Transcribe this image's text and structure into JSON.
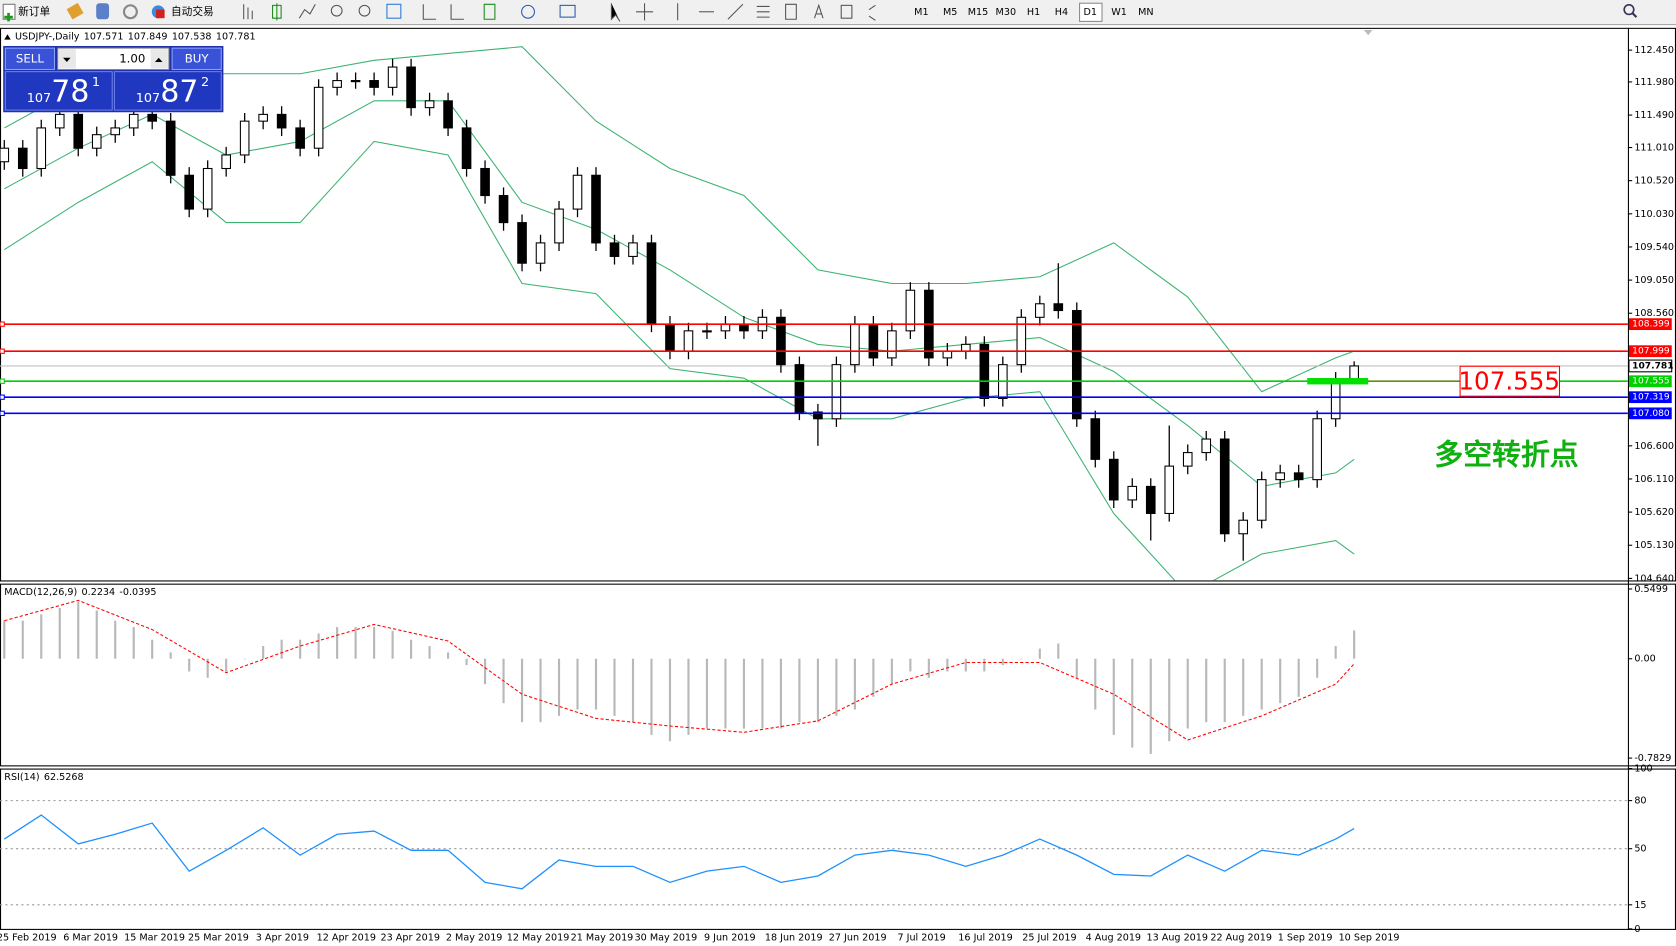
{
  "toolbar": {
    "new_order": "新订单",
    "auto_trading": "自动交易",
    "timeframes": [
      "M1",
      "M5",
      "M15",
      "M30",
      "H1",
      "H4",
      "D1",
      "W1",
      "MN"
    ],
    "active": "D1"
  },
  "trade_panel": {
    "sell": "SELL",
    "buy": "BUY",
    "lot": "1.00",
    "bid": {
      "big": "107",
      "main": "78",
      "small": "1"
    },
    "ask": {
      "big": "107",
      "main": "87",
      "small": "2"
    }
  },
  "chart_data": [
    {
      "type": "candlestick",
      "symbol": "USDJPY-,Daily",
      "ohlc": [
        [
          110.8,
          111.12,
          110.68,
          111.0
        ],
        [
          111.0,
          111.12,
          110.58,
          110.7
        ],
        [
          110.7,
          111.42,
          110.58,
          111.3
        ],
        [
          111.3,
          111.62,
          111.18,
          111.5
        ],
        [
          111.5,
          111.62,
          110.88,
          111.0
        ],
        [
          111.0,
          111.32,
          110.88,
          111.2
        ],
        [
          111.2,
          111.42,
          111.08,
          111.3
        ],
        [
          111.3,
          111.62,
          111.18,
          111.5
        ],
        [
          111.5,
          111.62,
          111.28,
          111.4
        ],
        [
          111.4,
          111.52,
          110.48,
          110.6
        ],
        [
          110.6,
          110.72,
          109.98,
          110.1
        ],
        [
          110.1,
          110.82,
          109.98,
          110.7
        ],
        [
          110.7,
          111.02,
          110.58,
          110.9
        ],
        [
          110.9,
          111.52,
          110.78,
          111.4
        ],
        [
          111.4,
          111.62,
          111.28,
          111.5
        ],
        [
          111.5,
          111.62,
          111.18,
          111.3
        ],
        [
          111.3,
          111.42,
          110.88,
          111.0
        ],
        [
          111.0,
          112.02,
          110.88,
          111.9
        ],
        [
          111.9,
          112.12,
          111.78,
          112.0
        ],
        [
          112.0,
          112.12,
          111.88,
          112.0
        ],
        [
          112.0,
          112.12,
          111.78,
          111.9
        ],
        [
          111.9,
          112.32,
          111.78,
          112.2
        ],
        [
          112.2,
          112.32,
          111.48,
          111.6
        ],
        [
          111.6,
          111.82,
          111.48,
          111.7
        ],
        [
          111.7,
          111.82,
          111.18,
          111.3
        ],
        [
          111.3,
          111.42,
          110.58,
          110.7
        ],
        [
          110.7,
          110.82,
          110.18,
          110.3
        ],
        [
          110.3,
          110.42,
          109.78,
          109.9
        ],
        [
          109.9,
          110.02,
          109.18,
          109.3
        ],
        [
          109.3,
          109.72,
          109.18,
          109.6
        ],
        [
          109.6,
          110.22,
          109.48,
          110.1
        ],
        [
          110.1,
          110.72,
          109.98,
          110.6
        ],
        [
          110.6,
          110.72,
          109.48,
          109.6
        ],
        [
          109.6,
          109.72,
          109.28,
          109.4
        ],
        [
          109.4,
          109.72,
          109.28,
          109.6
        ],
        [
          109.6,
          109.72,
          108.28,
          108.4
        ],
        [
          108.4,
          108.52,
          107.88,
          108.0
        ],
        [
          108.0,
          108.42,
          107.88,
          108.3
        ],
        [
          108.3,
          108.42,
          108.18,
          108.3
        ],
        [
          108.3,
          108.52,
          108.18,
          108.4
        ],
        [
          108.4,
          108.52,
          108.18,
          108.3
        ],
        [
          108.3,
          108.62,
          108.18,
          108.5
        ],
        [
          108.5,
          108.62,
          107.68,
          107.8
        ],
        [
          107.8,
          107.92,
          106.98,
          107.1
        ],
        [
          107.1,
          107.22,
          106.6,
          107.0
        ],
        [
          107.0,
          107.92,
          106.88,
          107.8
        ],
        [
          107.8,
          108.52,
          107.68,
          108.4
        ],
        [
          108.4,
          108.52,
          107.78,
          107.9
        ],
        [
          107.9,
          108.42,
          107.78,
          108.3
        ],
        [
          108.3,
          109.02,
          108.18,
          108.9
        ],
        [
          108.9,
          109.02,
          107.78,
          107.9
        ],
        [
          107.9,
          108.12,
          107.78,
          108.0
        ],
        [
          108.0,
          108.22,
          107.88,
          108.1
        ],
        [
          108.1,
          108.22,
          107.18,
          107.3
        ],
        [
          107.3,
          107.92,
          107.18,
          107.8
        ],
        [
          107.8,
          108.62,
          107.68,
          108.5
        ],
        [
          108.5,
          108.82,
          108.38,
          108.7
        ],
        [
          108.7,
          109.3,
          108.48,
          108.6
        ],
        [
          108.6,
          108.72,
          106.88,
          107.0
        ],
        [
          107.0,
          107.12,
          106.28,
          106.4
        ],
        [
          106.4,
          106.52,
          105.68,
          105.8
        ],
        [
          105.8,
          106.12,
          105.68,
          106.0
        ],
        [
          106.0,
          106.12,
          105.2,
          105.6
        ],
        [
          105.6,
          106.9,
          105.48,
          106.3
        ],
        [
          106.3,
          106.62,
          106.18,
          106.5
        ],
        [
          106.5,
          106.82,
          106.38,
          106.7
        ],
        [
          106.7,
          106.82,
          105.18,
          105.3
        ],
        [
          105.3,
          105.62,
          104.9,
          105.5
        ],
        [
          105.5,
          106.22,
          105.38,
          106.1
        ],
        [
          106.1,
          106.32,
          105.98,
          106.2
        ],
        [
          106.2,
          106.32,
          105.98,
          106.1
        ],
        [
          106.1,
          107.12,
          105.98,
          107.0
        ],
        [
          107.0,
          107.69,
          106.88,
          107.57
        ],
        [
          107.571,
          107.849,
          107.538,
          107.781
        ]
      ],
      "bands": {
        "color": "#3cb371",
        "x": [
          0,
          4,
          8,
          12,
          16,
          20,
          24,
          28,
          32,
          36,
          40,
          44,
          48,
          52,
          56,
          60,
          64,
          68,
          72,
          73
        ],
        "upper": [
          111.3,
          111.9,
          112.1,
          112.1,
          112.1,
          112.3,
          112.4,
          112.5,
          111.4,
          110.7,
          110.3,
          109.2,
          109.0,
          109.0,
          109.1,
          109.6,
          108.8,
          107.4,
          107.9,
          108.0
        ],
        "middle": [
          110.4,
          111.0,
          111.5,
          110.9,
          111.1,
          111.7,
          111.7,
          110.2,
          109.8,
          109.2,
          108.5,
          108.1,
          108.0,
          108.1,
          108.2,
          107.7,
          106.9,
          106.0,
          106.2,
          106.4
        ],
        "lower": [
          109.5,
          110.2,
          110.8,
          109.9,
          109.9,
          111.1,
          110.9,
          109.0,
          108.85,
          107.74,
          107.6,
          107.0,
          107.0,
          107.3,
          107.4,
          105.6,
          104.4,
          105.0,
          105.2,
          105.0
        ]
      },
      "ylim": [
        104.61,
        112.78
      ],
      "yticks": [
        {
          "value": 112.45,
          "label": "112.450"
        },
        {
          "value": 111.98,
          "label": "111.980"
        },
        {
          "value": 111.49,
          "label": "111.490"
        },
        {
          "value": 111.01,
          "label": "111.010"
        },
        {
          "value": 110.52,
          "label": "110.520"
        },
        {
          "value": 110.03,
          "label": "110.030"
        },
        {
          "value": 109.54,
          "label": "109.540"
        },
        {
          "value": 109.05,
          "label": "109.050"
        },
        {
          "value": 108.56,
          "label": "108.560"
        },
        {
          "value": 106.6,
          "label": "106.600"
        },
        {
          "value": 106.11,
          "label": "106.110"
        },
        {
          "value": 105.62,
          "label": "105.620"
        },
        {
          "value": 105.13,
          "label": "105.130"
        },
        {
          "value": 104.64,
          "label": "104.640"
        }
      ],
      "hlines": [
        {
          "value": 108.399,
          "color": "#ff0000"
        },
        {
          "value": 107.999,
          "color": "#ff0000"
        },
        {
          "value": 107.555,
          "color": "#00d000"
        },
        {
          "value": 107.319,
          "color": "#0000ff"
        },
        {
          "value": 107.08,
          "label": "107.080",
          "color": "#0000ff"
        }
      ],
      "x_labels": [
        "25 Feb 2019",
        "6 Mar 2019",
        "15 Mar 2019",
        "25 Mar 2019",
        "3 Apr 2019",
        "12 Apr 2019",
        "23 Apr 2019",
        "2 May 2019",
        "12 May 2019",
        "21 May 2019",
        "30 May 2019",
        "9 Jun 2019",
        "18 Jun 2019",
        "27 Jun 2019",
        "7 Jul 2019",
        "16 Jul 2019",
        "25 Jul 2019",
        "4 Aug 2019",
        "13 Aug 2019",
        "22 Aug 2019",
        "1 Sep 2019",
        "10 Sep 2019"
      ],
      "annotation": "多空转折点"
    },
    {
      "type": "macd",
      "title": "MACD(12,26,9)",
      "histogram": [
        0.3,
        0.3,
        0.35,
        0.4,
        0.45,
        0.38,
        0.3,
        0.25,
        0.15,
        0.05,
        -0.1,
        -0.15,
        -0.1,
        0.0,
        0.1,
        0.15,
        0.15,
        0.2,
        0.25,
        0.25,
        0.25,
        0.22,
        0.15,
        0.1,
        0.05,
        -0.05,
        -0.2,
        -0.35,
        -0.5,
        -0.5,
        -0.45,
        -0.4,
        -0.4,
        -0.45,
        -0.5,
        -0.6,
        -0.65,
        -0.6,
        -0.55,
        -0.55,
        -0.55,
        -0.55,
        -0.55,
        -0.5,
        -0.5,
        -0.45,
        -0.4,
        -0.3,
        -0.2,
        -0.1,
        -0.15,
        -0.1,
        -0.1,
        -0.1,
        -0.05,
        0.0,
        0.08,
        0.12,
        -0.15,
        -0.4,
        -0.6,
        -0.7,
        -0.75,
        -0.65,
        -0.55,
        -0.5,
        -0.5,
        -0.45,
        -0.4,
        -0.35,
        -0.3,
        -0.15,
        0.1,
        0.2234
      ],
      "signal": {
        "x": [
          0,
          4,
          8,
          12,
          16,
          20,
          24,
          28,
          32,
          36,
          40,
          44,
          48,
          52,
          56,
          60,
          64,
          68,
          72,
          73
        ],
        "values": [
          0.3,
          0.46,
          0.23,
          -0.11,
          0.1,
          0.27,
          0.14,
          -0.28,
          -0.47,
          -0.53,
          -0.58,
          -0.49,
          -0.2,
          -0.03,
          -0.03,
          -0.28,
          -0.64,
          -0.45,
          -0.2,
          -0.0395
        ],
        "color": "#ff0000"
      },
      "ylim": [
        -0.84,
        0.592
      ],
      "yticks": [
        0.5499,
        {
          "value": 0,
          "label": "0.00"
        },
        -0.7829
      ]
    },
    {
      "type": "rsi",
      "title": "RSI(14)",
      "color": "#1e90ff",
      "x": [
        0,
        2,
        4,
        6,
        8,
        10,
        12,
        14,
        16,
        18,
        20,
        22,
        24,
        26,
        28,
        30,
        32,
        34,
        36,
        38,
        40,
        42,
        44,
        46,
        48,
        50,
        52,
        54,
        56,
        58,
        60,
        62,
        64,
        66,
        68,
        70,
        72,
        73
      ],
      "values": [
        56,
        71,
        53,
        59,
        66,
        36,
        49,
        63,
        46,
        59,
        61,
        49,
        49,
        29,
        25,
        43,
        39,
        39,
        29,
        36,
        39,
        29,
        33,
        46,
        49,
        46,
        39,
        46,
        56,
        46,
        34,
        33,
        46,
        36,
        49,
        46,
        56,
        62.5268
      ],
      "ylim": [
        0,
        100
      ],
      "yticks": [
        100,
        80,
        50,
        15,
        0
      ]
    }
  ]
}
